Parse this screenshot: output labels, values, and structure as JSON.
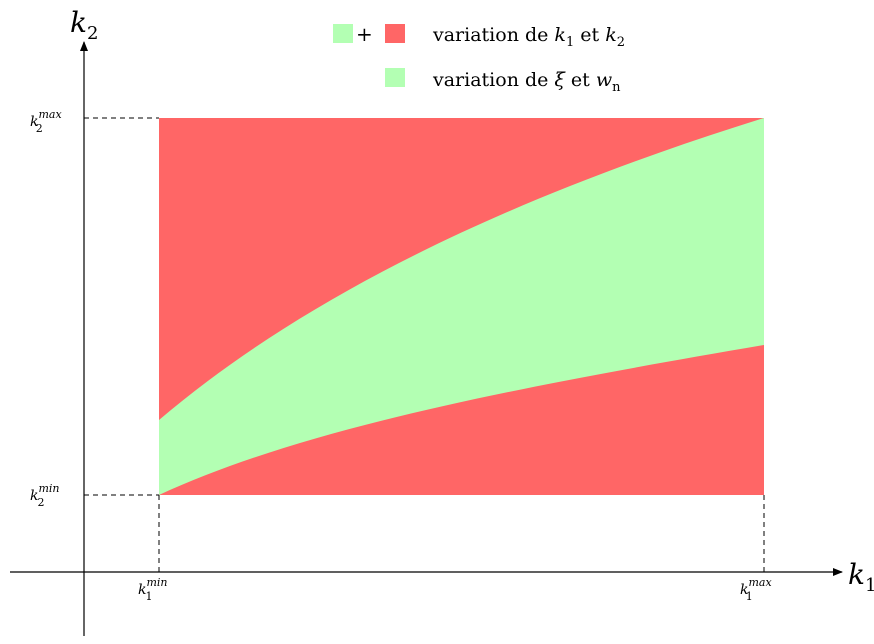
{
  "axes": {
    "x_label": {
      "base": "k",
      "sub": "1"
    },
    "y_label": {
      "base": "k",
      "sub": "2"
    }
  },
  "ticks": {
    "k1_min": {
      "base": "k",
      "sub": "1",
      "sup": "min"
    },
    "k1_max": {
      "base": "k",
      "sub": "1",
      "sup": "max"
    },
    "k2_min": {
      "base": "k",
      "sub": "2",
      "sup": "min"
    },
    "k2_max": {
      "base": "k",
      "sub": "2",
      "sup": "max"
    }
  },
  "legend": {
    "plus": "+",
    "entry1": {
      "text": "variation de ",
      "v1": "k",
      "v1sub": "1",
      "mid": " et ",
      "v2": "k",
      "v2sub": "2"
    },
    "entry2": {
      "text": "variation de ",
      "v1": "ξ",
      "mid": " et ",
      "v2": "w",
      "v2sub": "n"
    }
  },
  "colors": {
    "red": "#ff6666",
    "green": "#b3ffb3"
  }
}
